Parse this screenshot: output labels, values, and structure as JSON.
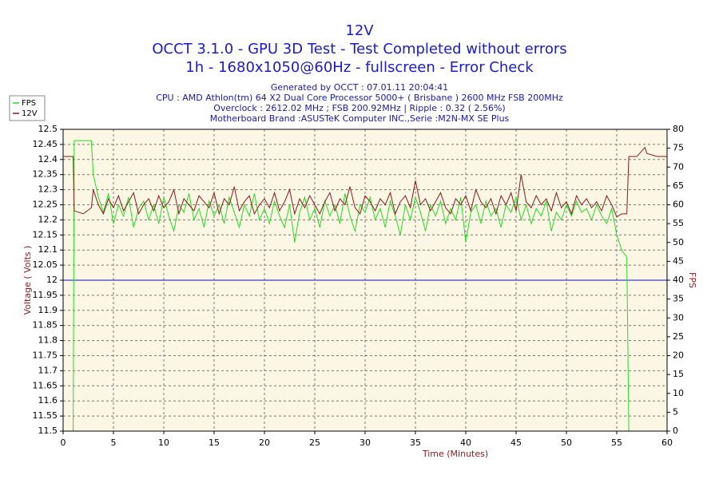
{
  "chart_data": {
    "type": "line",
    "title": "12V",
    "subtitle": [
      "OCCT 3.1.0 - GPU 3D Test - Test Completed without errors",
      "1h - 1680x1050@60Hz - fullscreen - Error Check"
    ],
    "info": [
      "Generated by OCCT : 07.01.11 20:04:41",
      "CPU : AMD Athlon(tm) 64 X2 Dual Core Processor 5000+ ( Brisbane ) 2600 MHz FSB 200MHz",
      "Overclock : 2612.02 MHz ; FSB 200.92MHz | Ripple : 0.32 ( 2.56%)",
      "Motherboard Brand :ASUSTeK Computer INC.,Serie :M2N-MX SE Plus"
    ],
    "x_label": "Time (Minutes)",
    "y_label": "Voltage ( Volts )",
    "y2_label": "FPS",
    "xlim": [
      0,
      60
    ],
    "xticks": [
      0,
      5,
      10,
      15,
      20,
      25,
      30,
      35,
      40,
      45,
      50,
      55,
      60
    ],
    "ylim": [
      11.5,
      12.5
    ],
    "yticks": [
      11.5,
      11.55,
      11.6,
      11.65,
      11.7,
      11.75,
      11.8,
      11.85,
      11.9,
      11.95,
      12,
      12.05,
      12.1,
      12.15,
      12.2,
      12.25,
      12.3,
      12.35,
      12.4,
      12.45,
      12.5
    ],
    "y2lim": [
      0,
      80
    ],
    "y2ticks": [
      0,
      5,
      10,
      15,
      20,
      25,
      30,
      35,
      40,
      45,
      50,
      55,
      60,
      65,
      70,
      75,
      80
    ],
    "grid": true,
    "legend": "top-left",
    "reference_line": {
      "value": 12,
      "color": "#1010c0"
    },
    "x": [
      0,
      1,
      1.1,
      2,
      2.8,
      3,
      3.5,
      4,
      4.5,
      5,
      5.5,
      6,
      6.5,
      7,
      7.5,
      8,
      8.5,
      9,
      9.5,
      10,
      10.5,
      11,
      11.5,
      12,
      12.5,
      13,
      13.5,
      14,
      14.5,
      15,
      15.5,
      16,
      16.5,
      17,
      17.5,
      18,
      18.5,
      19,
      19.5,
      20,
      20.5,
      21,
      21.5,
      22,
      22.5,
      23,
      23.5,
      24,
      24.5,
      25,
      25.5,
      26,
      26.5,
      27,
      27.5,
      28,
      28.5,
      29,
      29.5,
      30,
      30.5,
      31,
      31.5,
      32,
      32.5,
      33,
      33.5,
      34,
      34.5,
      35,
      35.5,
      36,
      36.5,
      37,
      37.5,
      38,
      38.5,
      39,
      39.5,
      40,
      40.5,
      41,
      41.5,
      42,
      42.5,
      43,
      43.5,
      44,
      44.5,
      45,
      45.5,
      46,
      46.5,
      47,
      47.5,
      48,
      48.5,
      49,
      49.5,
      50,
      50.5,
      51,
      51.5,
      52,
      52.5,
      53,
      53.5,
      54,
      54.5,
      55,
      55.5,
      56,
      56.2,
      57,
      57.8,
      58,
      59,
      60
    ],
    "series": [
      {
        "name": "FPS",
        "color": "#22dd22",
        "axis": "y2",
        "values": [
          0,
          0,
          77,
          77,
          77,
          68,
          62,
          58,
          63,
          55,
          60,
          57,
          62,
          54,
          59,
          61,
          56,
          60,
          55,
          62,
          57,
          53,
          60,
          58,
          63,
          56,
          59,
          54,
          61,
          57,
          60,
          55,
          62,
          58,
          54,
          60,
          57,
          63,
          56,
          59,
          55,
          61,
          57,
          54,
          60,
          50,
          58,
          62,
          56,
          59,
          54,
          61,
          57,
          60,
          55,
          63,
          57,
          53,
          60,
          58,
          62,
          56,
          59,
          54,
          61,
          57,
          52,
          60,
          56,
          62,
          58,
          53,
          60,
          57,
          61,
          55,
          59,
          56,
          62,
          50,
          58,
          60,
          55,
          61,
          57,
          59,
          54,
          60,
          58,
          62,
          56,
          60,
          55,
          59,
          57,
          61,
          53,
          58,
          56,
          60,
          57,
          61,
          58,
          59,
          56,
          60,
          57,
          55,
          59,
          52,
          48,
          46,
          0,
          0,
          0,
          0,
          0,
          0
        ]
      },
      {
        "name": "12V",
        "color": "#8b1a1a",
        "axis": "y",
        "values": [
          12.41,
          12.41,
          12.23,
          12.22,
          12.24,
          12.3,
          12.25,
          12.22,
          12.27,
          12.24,
          12.28,
          12.23,
          12.26,
          12.29,
          12.22,
          12.25,
          12.27,
          12.23,
          12.28,
          12.24,
          12.26,
          12.3,
          12.22,
          12.27,
          12.25,
          12.23,
          12.28,
          12.26,
          12.24,
          12.29,
          12.22,
          12.27,
          12.25,
          12.31,
          12.23,
          12.26,
          12.28,
          12.22,
          12.25,
          12.27,
          12.24,
          12.29,
          12.23,
          12.26,
          12.3,
          12.22,
          12.27,
          12.24,
          12.28,
          12.25,
          12.22,
          12.26,
          12.29,
          12.23,
          12.27,
          12.25,
          12.31,
          12.24,
          12.22,
          12.28,
          12.26,
          12.23,
          12.27,
          12.25,
          12.29,
          12.22,
          12.26,
          12.28,
          12.24,
          12.33,
          12.25,
          12.27,
          12.23,
          12.26,
          12.29,
          12.24,
          12.22,
          12.27,
          12.25,
          12.28,
          12.23,
          12.3,
          12.26,
          12.24,
          12.27,
          12.22,
          12.28,
          12.25,
          12.29,
          12.23,
          12.35,
          12.26,
          12.24,
          12.28,
          12.25,
          12.27,
          12.23,
          12.29,
          12.24,
          12.26,
          12.22,
          12.28,
          12.25,
          12.27,
          12.24,
          12.26,
          12.23,
          12.28,
          12.25,
          12.21,
          12.22,
          12.22,
          12.41,
          12.41,
          12.44,
          12.42,
          12.41,
          12.41
        ]
      }
    ]
  }
}
